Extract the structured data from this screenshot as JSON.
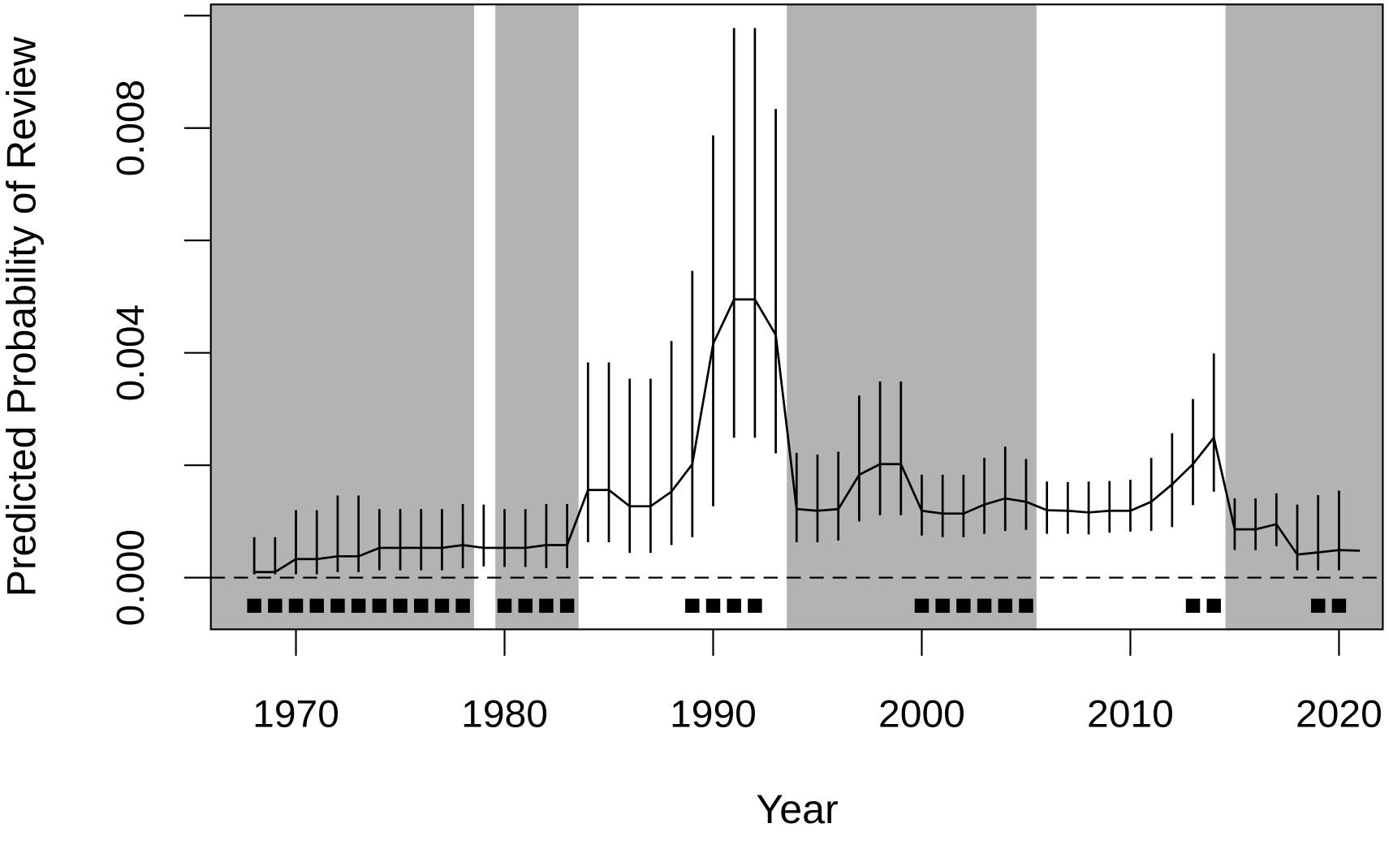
{
  "chart_data": {
    "type": "line",
    "xlabel": "Year",
    "ylabel": "Predicted Probability of Review",
    "x": [
      1968,
      1969,
      1970,
      1971,
      1972,
      1973,
      1974,
      1975,
      1976,
      1977,
      1978,
      1979,
      1980,
      1981,
      1982,
      1983,
      1984,
      1985,
      1986,
      1987,
      1988,
      1989,
      1990,
      1991,
      1992,
      1993,
      1994,
      1995,
      1996,
      1997,
      1998,
      1999,
      2000,
      2001,
      2002,
      2003,
      2004,
      2005,
      2006,
      2007,
      2008,
      2009,
      2010,
      2011,
      2012,
      2013,
      2014,
      2015,
      2016,
      2017,
      2018,
      2019,
      2020,
      2021
    ],
    "series": [
      {
        "color": "#000000",
        "values": [
          0.0001,
          0.0001,
          0.00033,
          0.00033,
          0.00038,
          0.00038,
          0.00053,
          0.00053,
          0.00053,
          0.00053,
          0.00058,
          0.00053,
          0.00053,
          0.00053,
          0.00058,
          0.00058,
          0.00156,
          0.00156,
          0.00127,
          0.00127,
          0.00153,
          0.00202,
          0.00416,
          0.00495,
          0.00495,
          0.00432,
          0.00122,
          0.00119,
          0.00122,
          0.00183,
          0.00202,
          0.00202,
          0.00119,
          0.00114,
          0.00114,
          0.0013,
          0.00141,
          0.00135,
          0.0012,
          0.00119,
          0.00116,
          0.00119,
          0.00119,
          0.00135,
          0.00166,
          0.00202,
          0.00249,
          0.00086,
          0.00086,
          0.00095,
          0.00041,
          0.00045,
          0.00049,
          0.00048
        ],
        "lower": [
          6e-05,
          6e-05,
          6e-05,
          6e-05,
          0.0001,
          0.0001,
          0.00013,
          0.00013,
          0.00013,
          0.00013,
          0.00017,
          0.0002,
          0.00019,
          0.00019,
          0.00017,
          0.00017,
          0.00063,
          0.00063,
          0.00044,
          0.00044,
          0.00058,
          0.00072,
          0.00127,
          0.00249,
          0.00249,
          0.00221,
          0.00063,
          0.00063,
          0.00066,
          0.001,
          0.00111,
          0.00111,
          0.00075,
          0.00072,
          0.00072,
          0.00078,
          0.00083,
          0.00085,
          0.00078,
          0.00078,
          0.00077,
          0.0008,
          0.00082,
          0.00083,
          0.0009,
          0.00129,
          0.00153,
          0.00049,
          0.00049,
          0.00056,
          0.00013,
          0.00013,
          0.00013,
          null
        ],
        "upper": [
          0.00072,
          0.00072,
          0.0012,
          0.0012,
          0.00146,
          0.00146,
          0.00122,
          0.00122,
          0.00122,
          0.00122,
          0.00131,
          0.0013,
          0.00122,
          0.00122,
          0.00131,
          0.00131,
          0.00383,
          0.00383,
          0.00354,
          0.00354,
          0.00421,
          0.00546,
          0.00787,
          0.00978,
          0.00978,
          0.00834,
          0.00222,
          0.00219,
          0.00224,
          0.00324,
          0.00349,
          0.00349,
          0.00183,
          0.00183,
          0.00183,
          0.00213,
          0.00233,
          0.00211,
          0.00171,
          0.0017,
          0.00171,
          0.00172,
          0.00174,
          0.00213,
          0.00257,
          0.00318,
          0.00399,
          0.00141,
          0.00141,
          0.0015,
          0.0013,
          0.00147,
          0.00155,
          null
        ]
      }
    ],
    "xlim": [
      1965.92,
      2022.1
    ],
    "ylim": [
      -0.00092,
      0.0102
    ],
    "xticks": [
      1970,
      1980,
      1990,
      2000,
      2010,
      2020
    ],
    "yticks": [
      {
        "value": 0,
        "label": "0.000"
      },
      {
        "value": 0.004,
        "label": "0.004"
      },
      {
        "value": 0.008,
        "label": "0.008"
      }
    ],
    "yticks_unlabeled": [
      0.002,
      0.006,
      0.01
    ],
    "shaded_periods": [
      [
        1965,
        1978.54
      ],
      [
        1979.56,
        1983.55
      ],
      [
        1993.53,
        2005.5
      ],
      [
        2014.56,
        2023
      ]
    ],
    "shade_color": "#b3b3b3",
    "reference_line": 0,
    "marker_years": [
      1968,
      1969,
      1970,
      1971,
      1972,
      1973,
      1974,
      1975,
      1976,
      1977,
      1978,
      1980,
      1981,
      1982,
      1983,
      1989,
      1990,
      1991,
      1992,
      2000,
      2001,
      2002,
      2003,
      2004,
      2005,
      2013,
      2014,
      2019,
      2020
    ],
    "marker_y": -0.0005
  }
}
